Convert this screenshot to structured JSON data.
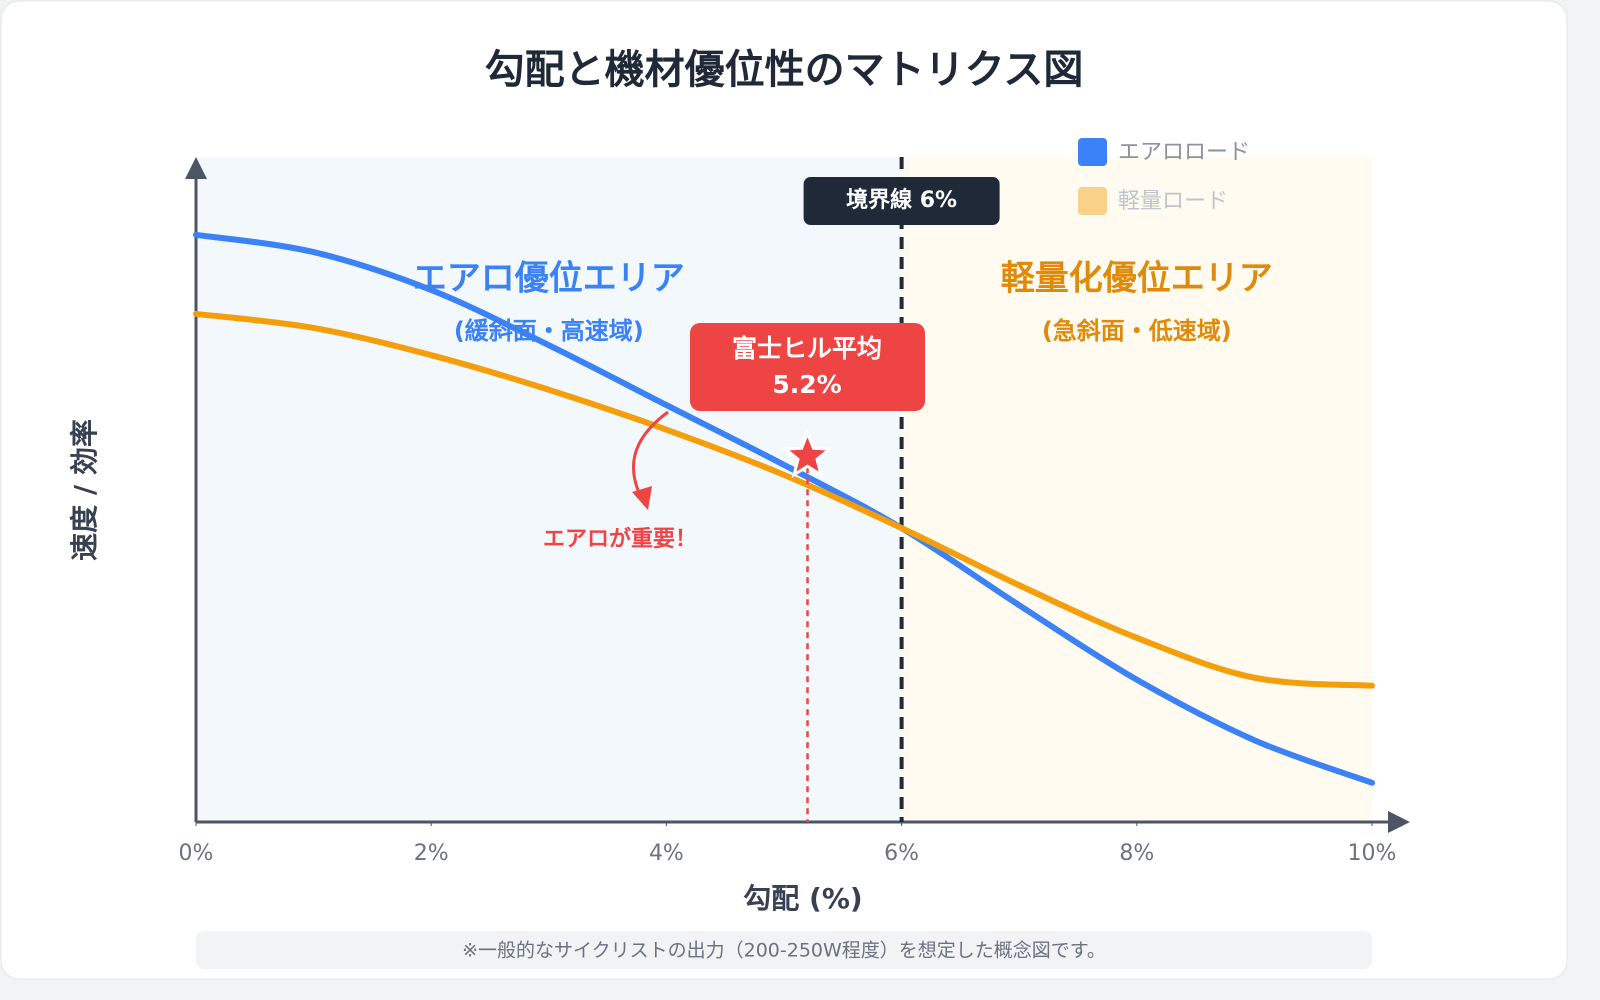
{
  "chart_data": {
    "type": "line",
    "title": "勾配と機材優位性のマトリクス図",
    "x_label": "勾配 (%)",
    "y_label": "速度 / 効率",
    "x": [
      0,
      1,
      2,
      3,
      4,
      5,
      6,
      7,
      8,
      9,
      10
    ],
    "series": [
      {
        "name": "エアロロード",
        "color": "#3b82f6",
        "values": [
          88.3,
          85.7,
          80,
          71.7,
          62.7,
          53.7,
          44.2,
          32.6,
          21.4,
          12.3,
          5.9
        ]
      },
      {
        "name": "軽量ロード",
        "color": "#f59e0b",
        "values": [
          76.4,
          74.3,
          70.2,
          65,
          59,
          52.2,
          44.2,
          35.6,
          27.7,
          21.7,
          20.5
        ]
      }
    ],
    "xlim": [
      0,
      10
    ],
    "ylim": [
      0,
      100
    ],
    "xticks": [
      {
        "value": 0,
        "label": "0%"
      },
      {
        "value": 2,
        "label": "2%"
      },
      {
        "value": 4,
        "label": "4%"
      },
      {
        "value": 6,
        "label": "6%"
      },
      {
        "value": 8,
        "label": "8%"
      },
      {
        "value": 10,
        "label": "10%"
      }
    ],
    "boundary": {
      "x": 6,
      "label": "境界線 6%"
    },
    "regions": [
      {
        "title": "エアロ優位エリア",
        "subtitle": "(緩斜面・高速域)",
        "color": "#3b82f6"
      },
      {
        "title": "軽量化優位エリア",
        "subtitle": "(急斜面・低速域)",
        "color": "#e08a0b"
      }
    ],
    "marker": {
      "x": 5.2,
      "y": 55,
      "label": "富士ヒル平均",
      "value_label": "5.2%"
    },
    "callout": "エアロが重要！",
    "footnote": "※一般的なサイクリストの出力（200-250W程度）を想定した概念図です。"
  }
}
